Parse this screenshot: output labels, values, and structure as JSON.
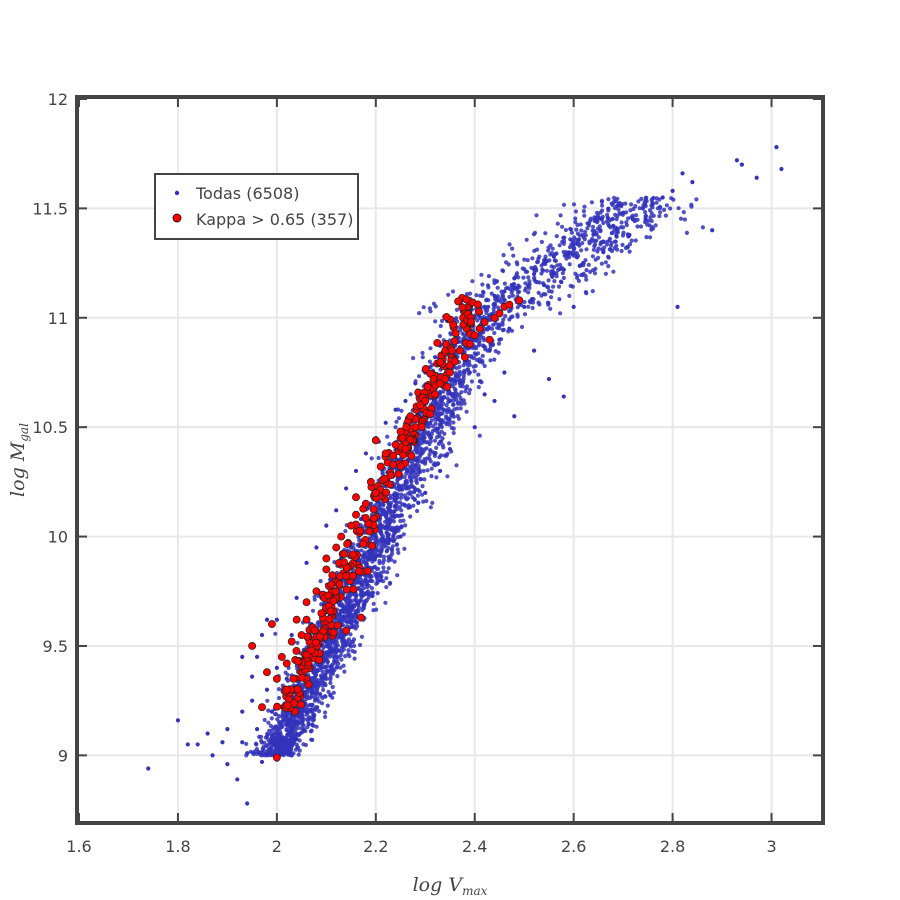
{
  "chart_data": {
    "type": "scatter",
    "title": "",
    "xlabel": {
      "main": "log V",
      "sub": "max"
    },
    "ylabel": {
      "main": "log  M",
      "sub": "gal"
    },
    "xlim": [
      1.6,
      3.1
    ],
    "ylim": [
      8.7,
      12.0
    ],
    "x_ticks": [
      1.6,
      1.8,
      2.0,
      2.2,
      2.4,
      2.6,
      2.8,
      3.0
    ],
    "x_tick_labels": [
      "1.6",
      "1.8",
      "2",
      "2.2",
      "2.4",
      "2.6",
      "2.8",
      "3"
    ],
    "y_ticks": [
      9,
      9.5,
      10,
      10.5,
      11,
      11.5,
      12
    ],
    "y_tick_labels": [
      "9",
      "9.5",
      "10",
      "10.5",
      "11",
      "11.5",
      "12"
    ],
    "grid": true,
    "legend_position": "top-left",
    "series": [
      {
        "name": "Todas (6508)",
        "color": "#3333bb",
        "marker": "small-dot",
        "points": [
          [
            1.74,
            8.94
          ],
          [
            1.8,
            9.16
          ],
          [
            1.82,
            9.05
          ],
          [
            1.84,
            9.05
          ],
          [
            1.86,
            9.1
          ],
          [
            1.87,
            9.0
          ],
          [
            1.89,
            9.06
          ],
          [
            1.9,
            8.96
          ],
          [
            1.9,
            9.12
          ],
          [
            1.92,
            8.89
          ],
          [
            1.93,
            9.06
          ],
          [
            1.93,
            9.2
          ],
          [
            1.94,
            8.78
          ],
          [
            1.94,
            9.01
          ],
          [
            1.95,
            9.25
          ],
          [
            1.95,
            9.36
          ],
          [
            1.96,
            9.12
          ],
          [
            1.96,
            9.45
          ],
          [
            1.97,
            8.97
          ],
          [
            1.98,
            9.3
          ],
          [
            1.98,
            9.62
          ],
          [
            1.99,
            9.2
          ],
          [
            2.0,
            9.4
          ],
          [
            2.0,
            9.62
          ],
          [
            2.01,
            9.05
          ],
          [
            2.02,
            9.35
          ],
          [
            2.03,
            9.55
          ],
          [
            2.04,
            9.72
          ],
          [
            2.05,
            9.4
          ],
          [
            2.06,
            9.88
          ],
          [
            2.07,
            9.6
          ],
          [
            2.08,
            9.95
          ],
          [
            2.09,
            9.72
          ],
          [
            2.1,
            10.05
          ],
          [
            2.11,
            9.8
          ],
          [
            2.12,
            10.12
          ],
          [
            2.13,
            9.9
          ],
          [
            2.14,
            10.22
          ],
          [
            2.15,
            9.95
          ],
          [
            2.16,
            10.3
          ],
          [
            2.17,
            10.08
          ],
          [
            2.18,
            10.38
          ],
          [
            2.19,
            10.15
          ],
          [
            2.2,
            10.45
          ],
          [
            2.21,
            10.25
          ],
          [
            2.22,
            10.52
          ],
          [
            2.23,
            10.32
          ],
          [
            2.24,
            10.58
          ],
          [
            2.25,
            10.4
          ],
          [
            2.26,
            10.62
          ],
          [
            2.27,
            10.45
          ],
          [
            2.28,
            10.7
          ],
          [
            2.29,
            10.52
          ],
          [
            2.3,
            10.75
          ],
          [
            2.31,
            10.55
          ],
          [
            2.32,
            10.82
          ],
          [
            2.33,
            10.6
          ],
          [
            2.34,
            10.88
          ],
          [
            2.35,
            10.62
          ],
          [
            2.36,
            10.92
          ],
          [
            2.37,
            10.7
          ],
          [
            2.38,
            10.95
          ],
          [
            2.39,
            10.75
          ],
          [
            2.4,
            11.0
          ],
          [
            2.41,
            10.8
          ],
          [
            2.42,
            11.05
          ],
          [
            2.43,
            10.85
          ],
          [
            2.44,
            11.1
          ],
          [
            2.45,
            10.9
          ],
          [
            2.46,
            11.12
          ],
          [
            2.47,
            10.95
          ],
          [
            2.48,
            11.18
          ],
          [
            2.5,
            11.05
          ],
          [
            2.52,
            11.2
          ],
          [
            2.54,
            11.15
          ],
          [
            2.56,
            11.28
          ],
          [
            2.58,
            11.22
          ],
          [
            2.6,
            11.32
          ],
          [
            2.62,
            11.25
          ],
          [
            2.64,
            11.38
          ],
          [
            2.66,
            11.3
          ],
          [
            2.68,
            11.42
          ],
          [
            2.7,
            11.48
          ],
          [
            2.72,
            11.45
          ],
          [
            2.74,
            11.5
          ],
          [
            2.76,
            11.52
          ],
          [
            2.78,
            11.55
          ],
          [
            2.8,
            11.58
          ],
          [
            2.82,
            11.66
          ],
          [
            2.84,
            11.62
          ],
          [
            2.88,
            11.4
          ],
          [
            2.81,
            11.05
          ],
          [
            2.93,
            11.72
          ],
          [
            2.94,
            11.7
          ],
          [
            2.97,
            11.64
          ],
          [
            3.01,
            11.78
          ],
          [
            3.02,
            11.68
          ],
          [
            2.19,
            9.82
          ],
          [
            2.21,
            9.8
          ],
          [
            2.33,
            10.3
          ],
          [
            2.4,
            10.5
          ],
          [
            2.44,
            10.62
          ],
          [
            2.48,
            10.55
          ],
          [
            2.55,
            10.72
          ],
          [
            2.58,
            10.64
          ],
          [
            2.6,
            11.05
          ],
          [
            2.09,
            9.4
          ],
          [
            2.12,
            9.58
          ],
          [
            2.06,
            9.2
          ],
          [
            2.03,
            9.0
          ],
          [
            2.0,
            8.98
          ],
          [
            1.97,
            9.55
          ],
          [
            1.93,
            9.45
          ],
          [
            2.25,
            10.0
          ],
          [
            2.3,
            10.2
          ],
          [
            2.35,
            10.4
          ],
          [
            2.42,
            10.65
          ],
          [
            2.46,
            10.75
          ],
          [
            2.52,
            10.85
          ],
          [
            2.16,
            9.65
          ]
        ]
      },
      {
        "name": "Kappa > 0.65 (357)",
        "color": "#ff0000",
        "marker": "circle-outlined",
        "points": [
          [
            1.95,
            9.5
          ],
          [
            1.97,
            9.22
          ],
          [
            1.98,
            9.38
          ],
          [
            1.99,
            9.6
          ],
          [
            2.0,
            9.35
          ],
          [
            2.0,
            8.99
          ],
          [
            2.01,
            9.45
          ],
          [
            2.02,
            9.3
          ],
          [
            2.03,
            9.52
          ],
          [
            2.04,
            9.62
          ],
          [
            2.05,
            9.55
          ],
          [
            2.06,
            9.7
          ],
          [
            2.07,
            9.48
          ],
          [
            2.08,
            9.75
          ],
          [
            2.09,
            9.65
          ],
          [
            2.1,
            9.85
          ],
          [
            2.11,
            9.78
          ],
          [
            2.12,
            9.95
          ],
          [
            2.13,
            10.0
          ],
          [
            2.14,
            9.82
          ],
          [
            2.15,
            10.05
          ],
          [
            2.16,
            10.1
          ],
          [
            2.17,
            9.63
          ],
          [
            2.14,
            9.57
          ],
          [
            2.18,
            10.15
          ],
          [
            2.19,
            10.25
          ],
          [
            2.2,
            10.2
          ],
          [
            2.21,
            10.32
          ],
          [
            2.22,
            10.38
          ],
          [
            2.23,
            10.28
          ],
          [
            2.24,
            10.42
          ],
          [
            2.25,
            10.48
          ],
          [
            2.26,
            10.4
          ],
          [
            2.27,
            10.55
          ],
          [
            2.28,
            10.5
          ],
          [
            2.29,
            10.6
          ],
          [
            2.3,
            10.62
          ],
          [
            2.31,
            10.56
          ],
          [
            2.32,
            10.65
          ],
          [
            2.33,
            10.7
          ],
          [
            2.34,
            10.72
          ],
          [
            2.35,
            10.75
          ],
          [
            2.36,
            10.8
          ],
          [
            2.37,
            10.85
          ],
          [
            2.38,
            10.82
          ],
          [
            2.39,
            10.88
          ],
          [
            2.4,
            10.92
          ],
          [
            2.41,
            10.95
          ],
          [
            2.42,
            10.98
          ],
          [
            2.43,
            10.9
          ],
          [
            2.44,
            11.0
          ],
          [
            2.45,
            11.02
          ],
          [
            2.46,
            11.05
          ],
          [
            2.47,
            11.06
          ],
          [
            2.49,
            11.08
          ],
          [
            2.2,
            10.44
          ],
          [
            2.16,
            10.18
          ],
          [
            2.1,
            9.9
          ],
          [
            2.06,
            9.62
          ],
          [
            2.02,
            9.42
          ]
        ]
      }
    ]
  },
  "legend": {
    "items": [
      {
        "label": "Todas (6508)",
        "color": "#3333bb"
      },
      {
        "label": "Kappa > 0.65 (357)",
        "color": "#ff0000"
      }
    ]
  }
}
